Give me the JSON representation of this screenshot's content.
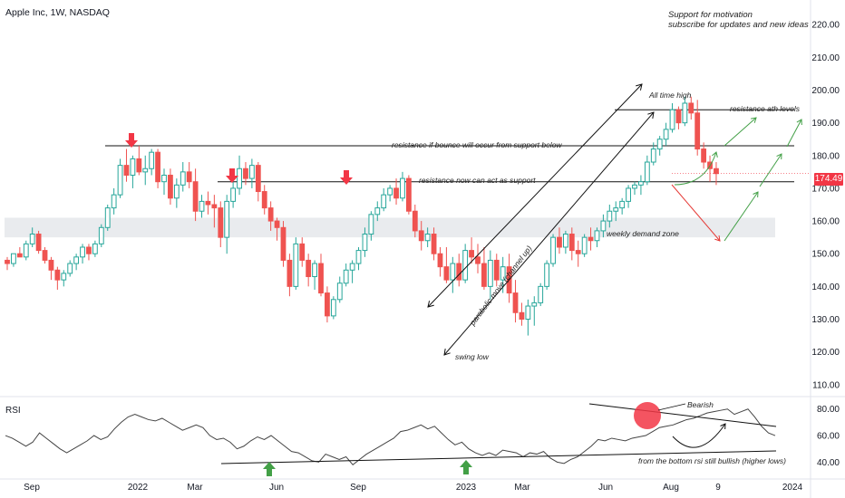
{
  "header": {
    "title": "Apple Inc, 1W, NASDAQ"
  },
  "promo": {
    "line1": "Support for motivation",
    "line2": "subscribe for updates and new ideas"
  },
  "price_badge": "174.49",
  "rsi_label": "RSI",
  "annotations": {
    "ath": "All time high",
    "resistance_ath": "resistance ath levels",
    "resistance_bounce": "resistance if bounce will occur from support below",
    "resistance_support": "resistance now can act as support",
    "demand_zone": "weekly demand zone",
    "parabolic": "parabolic move (channel up)",
    "swing_low": "swing low",
    "bearish": "Bearish",
    "rsi_bullish": "from the bottom rsi still bullish (higher lows)"
  },
  "colors": {
    "up": "#26a69a",
    "down": "#ef5350",
    "arrow_red": "#f23645",
    "arrow_green": "#43a047",
    "zone": "#e9ebee",
    "bg": "#ffffff"
  },
  "chart_data": {
    "type": "candlestick",
    "title": "Apple Inc, 1W, NASDAQ",
    "y_ticks": [
      "220.00",
      "210.00",
      "200.00",
      "190.00",
      "180.00",
      "170.00",
      "160.00",
      "150.00",
      "140.00",
      "130.00",
      "120.00",
      "110.00"
    ],
    "ylim": [
      108,
      222
    ],
    "x_ticks": [
      "Sep",
      "2022",
      "Mar",
      "Jun",
      "Sep",
      "2023",
      "Mar",
      "Jun",
      "Aug",
      "9",
      "2024"
    ],
    "rsi_ticks": [
      "80.00",
      "60.00",
      "40.00"
    ],
    "rsi_ylim": [
      30,
      88
    ],
    "last_price": 174.49,
    "demand_zone": [
      155,
      161
    ],
    "levels": {
      "resistance_ath": 194,
      "resistance_bounce": 183,
      "resistance_support": 172
    },
    "candles": [
      [
        148,
        149,
        145,
        147
      ],
      [
        147,
        150,
        146,
        150
      ],
      [
        150,
        152,
        149,
        149
      ],
      [
        149,
        154,
        148,
        153
      ],
      [
        153,
        158,
        152,
        156
      ],
      [
        156,
        157,
        150,
        151
      ],
      [
        151,
        152,
        147,
        148
      ],
      [
        148,
        149,
        142,
        145
      ],
      [
        145,
        146,
        139,
        142
      ],
      [
        142,
        145,
        140,
        144
      ],
      [
        144,
        148,
        143,
        147
      ],
      [
        147,
        150,
        145,
        149
      ],
      [
        149,
        153,
        147,
        152
      ],
      [
        152,
        153,
        148,
        150
      ],
      [
        150,
        154,
        149,
        153
      ],
      [
        153,
        159,
        152,
        158
      ],
      [
        158,
        165,
        157,
        164
      ],
      [
        164,
        170,
        162,
        168
      ],
      [
        168,
        179,
        167,
        177
      ],
      [
        177,
        182,
        172,
        174
      ],
      [
        174,
        180,
        170,
        179
      ],
      [
        179,
        183,
        174,
        175
      ],
      [
        175,
        180,
        171,
        176
      ],
      [
        176,
        182,
        174,
        181
      ],
      [
        181,
        182,
        170,
        172
      ],
      [
        172,
        176,
        168,
        174
      ],
      [
        174,
        176,
        165,
        167
      ],
      [
        167,
        173,
        164,
        171
      ],
      [
        171,
        178,
        169,
        175
      ],
      [
        175,
        178,
        170,
        172
      ],
      [
        172,
        176,
        160,
        163
      ],
      [
        163,
        168,
        161,
        166
      ],
      [
        166,
        169,
        162,
        165
      ],
      [
        165,
        168,
        158,
        164
      ],
      [
        164,
        166,
        152,
        155
      ],
      [
        155,
        168,
        150,
        166
      ],
      [
        166,
        172,
        164,
        170
      ],
      [
        170,
        180,
        168,
        176
      ],
      [
        176,
        178,
        171,
        173
      ],
      [
        173,
        179,
        170,
        177
      ],
      [
        177,
        178,
        166,
        169
      ],
      [
        169,
        171,
        162,
        164
      ],
      [
        164,
        166,
        157,
        160
      ],
      [
        160,
        161,
        154,
        158
      ],
      [
        158,
        160,
        146,
        148
      ],
      [
        148,
        150,
        137,
        140
      ],
      [
        140,
        155,
        139,
        153
      ],
      [
        153,
        155,
        146,
        148
      ],
      [
        148,
        150,
        140,
        143
      ],
      [
        143,
        148,
        139,
        147
      ],
      [
        147,
        150,
        137,
        138
      ],
      [
        138,
        140,
        129,
        131
      ],
      [
        131,
        137,
        130,
        136
      ],
      [
        136,
        143,
        135,
        141
      ],
      [
        141,
        147,
        140,
        145
      ],
      [
        145,
        148,
        141,
        147
      ],
      [
        147,
        152,
        145,
        151
      ],
      [
        151,
        158,
        149,
        156
      ],
      [
        156,
        163,
        154,
        162
      ],
      [
        162,
        166,
        160,
        164
      ],
      [
        164,
        170,
        163,
        168
      ],
      [
        168,
        171,
        166,
        170
      ],
      [
        170,
        173,
        165,
        167
      ],
      [
        167,
        175,
        166,
        173
      ],
      [
        173,
        174,
        162,
        163
      ],
      [
        163,
        165,
        155,
        157
      ],
      [
        157,
        160,
        151,
        154
      ],
      [
        154,
        158,
        152,
        156
      ],
      [
        156,
        158,
        148,
        150
      ],
      [
        150,
        152,
        143,
        146
      ],
      [
        146,
        152,
        141,
        142
      ],
      [
        142,
        149,
        138,
        147
      ],
      [
        147,
        150,
        140,
        142
      ],
      [
        142,
        153,
        141,
        151
      ],
      [
        151,
        155,
        147,
        149
      ],
      [
        149,
        153,
        144,
        147
      ],
      [
        147,
        152,
        139,
        140
      ],
      [
        140,
        151,
        136,
        148
      ],
      [
        148,
        150,
        140,
        142
      ],
      [
        142,
        149,
        138,
        146
      ],
      [
        146,
        150,
        135,
        138
      ],
      [
        138,
        142,
        129,
        132
      ],
      [
        132,
        135,
        128,
        130
      ],
      [
        130,
        136,
        125,
        134
      ],
      [
        134,
        137,
        128,
        135
      ],
      [
        135,
        141,
        134,
        140
      ],
      [
        140,
        148,
        139,
        147
      ],
      [
        147,
        156,
        146,
        155
      ],
      [
        155,
        158,
        150,
        152
      ],
      [
        152,
        157,
        150,
        156
      ],
      [
        156,
        158,
        148,
        151
      ],
      [
        151,
        154,
        146,
        150
      ],
      [
        150,
        156,
        149,
        155
      ],
      [
        155,
        158,
        151,
        154
      ],
      [
        154,
        158,
        152,
        157
      ],
      [
        157,
        162,
        155,
        160
      ],
      [
        160,
        165,
        158,
        163
      ],
      [
        163,
        166,
        160,
        164
      ],
      [
        164,
        167,
        162,
        166
      ],
      [
        166,
        171,
        164,
        170
      ],
      [
        170,
        172,
        168,
        171
      ],
      [
        171,
        174,
        168,
        172
      ],
      [
        172,
        180,
        171,
        178
      ],
      [
        178,
        184,
        177,
        182
      ],
      [
        182,
        186,
        180,
        185
      ],
      [
        185,
        190,
        183,
        188
      ],
      [
        188,
        196,
        187,
        194
      ],
      [
        194,
        195,
        188,
        190
      ],
      [
        190,
        198,
        189,
        196
      ],
      [
        196,
        198,
        191,
        193
      ],
      [
        193,
        197,
        180,
        182
      ],
      [
        182,
        184,
        176,
        178
      ],
      [
        178,
        180,
        172,
        176
      ],
      [
        176,
        178,
        171,
        174.49
      ]
    ],
    "rsi": [
      60,
      58,
      55,
      52,
      55,
      62,
      58,
      54,
      50,
      47,
      50,
      53,
      56,
      60,
      57,
      59,
      65,
      70,
      74,
      76,
      74,
      72,
      71,
      73,
      70,
      67,
      64,
      66,
      68,
      66,
      60,
      57,
      58,
      55,
      50,
      52,
      56,
      59,
      57,
      60,
      56,
      52,
      48,
      47,
      44,
      41,
      40,
      46,
      44,
      42,
      44,
      38,
      42,
      46,
      49,
      52,
      55,
      58,
      63,
      64,
      66,
      68,
      65,
      67,
      62,
      57,
      53,
      55,
      50,
      47,
      45,
      47,
      45,
      49,
      48,
      47,
      44,
      47,
      46,
      48,
      43,
      40,
      39,
      42,
      44,
      48,
      52,
      57,
      56,
      58,
      57,
      56,
      58,
      59,
      60,
      63,
      66,
      67,
      68,
      70,
      72,
      73,
      75,
      77,
      78,
      79,
      80,
      76,
      78,
      80,
      74,
      67,
      62,
      60
    ]
  }
}
